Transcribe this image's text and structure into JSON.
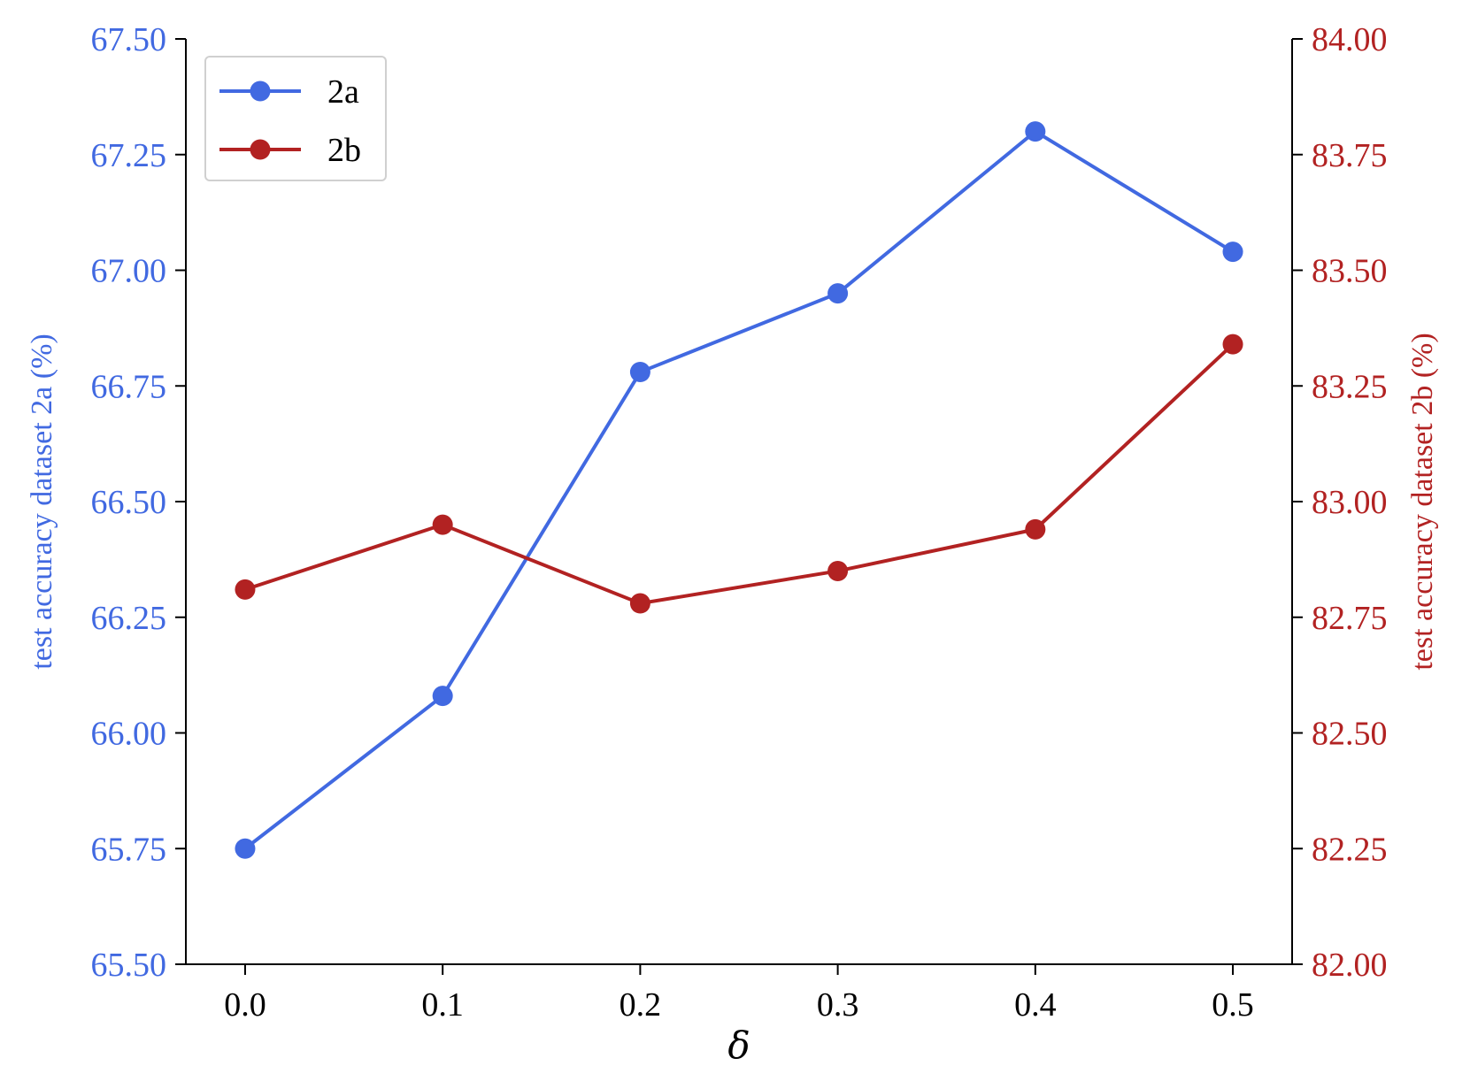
{
  "chart_data": {
    "type": "line",
    "x": [
      0.0,
      0.1,
      0.2,
      0.3,
      0.4,
      0.5
    ],
    "xticks": [
      "0.0",
      "0.1",
      "0.2",
      "0.3",
      "0.4",
      "0.5"
    ],
    "xlim": [
      -0.03,
      0.53
    ],
    "xlabel": "δ",
    "y_left": {
      "label": "test accuracy dataset 2a (%)",
      "lim": [
        65.5,
        67.5
      ],
      "ticks": [
        "65.50",
        "65.75",
        "66.00",
        "66.25",
        "66.50",
        "66.75",
        "67.00",
        "67.25",
        "67.50"
      ],
      "color": "#4169e1"
    },
    "y_right": {
      "label": "test accuracy dataset 2b (%)",
      "lim": [
        82.0,
        84.0
      ],
      "ticks": [
        "82.00",
        "82.25",
        "82.50",
        "82.75",
        "83.00",
        "83.25",
        "83.50",
        "83.75",
        "84.00"
      ],
      "color": "#b22222"
    },
    "series": [
      {
        "name": "2a",
        "axis": "left",
        "color": "#4169e1",
        "values": [
          65.75,
          66.08,
          66.78,
          66.95,
          67.3,
          67.04
        ]
      },
      {
        "name": "2b",
        "axis": "right",
        "color": "#b22222",
        "values": [
          82.81,
          82.95,
          82.78,
          82.85,
          82.94,
          83.34
        ]
      }
    ],
    "legend": {
      "position": "top-left"
    },
    "grid": false
  }
}
